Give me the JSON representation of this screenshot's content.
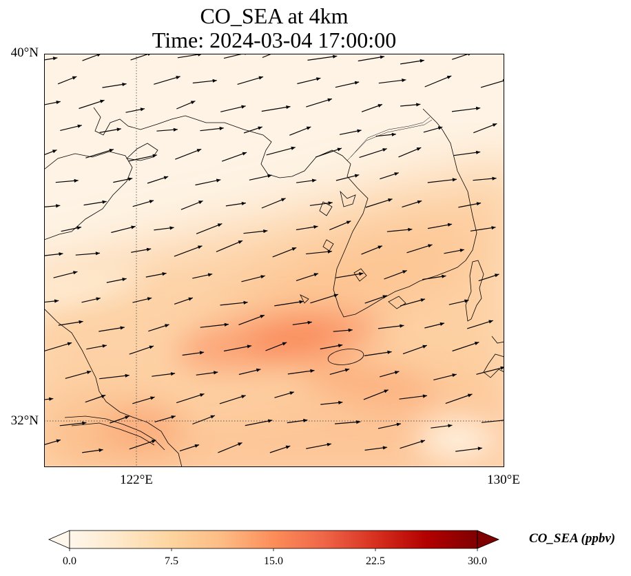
{
  "title": {
    "line1": "CO_SEA at 4km",
    "line2": "Time: 2024-03-04 17:00:00"
  },
  "axes": {
    "lat_ticks": [
      "40°N",
      "32°N"
    ],
    "lon_ticks": [
      "122°E",
      "130°E"
    ],
    "lon_range": [
      120,
      130
    ],
    "lat_range": [
      31,
      40
    ],
    "gridlines": "dotted at 122°E and 32°N"
  },
  "colorbar": {
    "label": "CO_SEA (ppbv)",
    "ticks": [
      "0.0",
      "7.5",
      "15.0",
      "22.5",
      "30.0"
    ],
    "range": [
      0,
      30
    ],
    "extend": "both",
    "colormap": "OrRd",
    "colors": [
      "#fff7ec",
      "#fee8c8",
      "#fdd49e",
      "#fdbb84",
      "#fc8d59",
      "#ef6548",
      "#d7301f",
      "#b30000",
      "#7f0000"
    ]
  },
  "field": {
    "background_ppbv": 5,
    "plume_peak_ppbv": 13,
    "plume_center": [
      125.8,
      33.8
    ]
  },
  "wind": {
    "description": "westerly wind vectors pointing east to east-northeast"
  }
}
